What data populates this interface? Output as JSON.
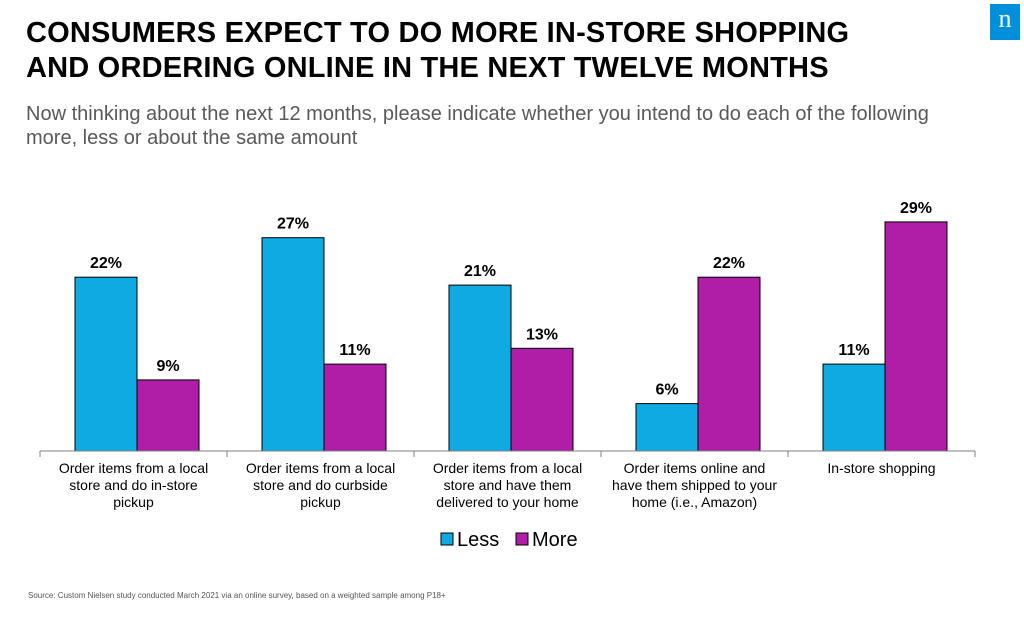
{
  "title_lines": [
    "CONSUMERS EXPECT TO DO MORE IN-STORE SHOPPING",
    "AND ORDERING ONLINE IN THE NEXT TWELVE MONTHS"
  ],
  "subtitle": "Now thinking about the next 12 months, please indicate whether you intend to do each of the following more, less or about the same amount",
  "logo_letter": "n",
  "source": "Source: Custom Nielsen study conducted March 2021 via an online survey, based on a weighted sample among P18+",
  "colors": {
    "less": "#10aae3",
    "more": "#b01ea8",
    "logo": "#0090d9"
  },
  "chart_data": {
    "type": "bar",
    "categories": [
      [
        "Order items from a local",
        "store and do in-store",
        "pickup"
      ],
      [
        "Order items from a local",
        "store and do curbside",
        "pickup"
      ],
      [
        "Order items from a local",
        "store and have them",
        "delivered to your home"
      ],
      [
        "Order items online and",
        "have them shipped to your",
        "home (i.e., Amazon)"
      ],
      [
        "In-store shopping"
      ]
    ],
    "series": [
      {
        "name": "Less",
        "values": [
          22,
          27,
          21,
          6,
          11
        ],
        "labels": [
          "22%",
          "27%",
          "21%",
          "6%",
          "11%"
        ]
      },
      {
        "name": "More",
        "values": [
          9,
          11,
          13,
          22,
          29
        ],
        "labels": [
          "9%",
          "11%",
          "13%",
          "22%",
          "29%"
        ]
      }
    ],
    "ylim": [
      0,
      29
    ],
    "grid": false,
    "legend": "bottom-center"
  }
}
